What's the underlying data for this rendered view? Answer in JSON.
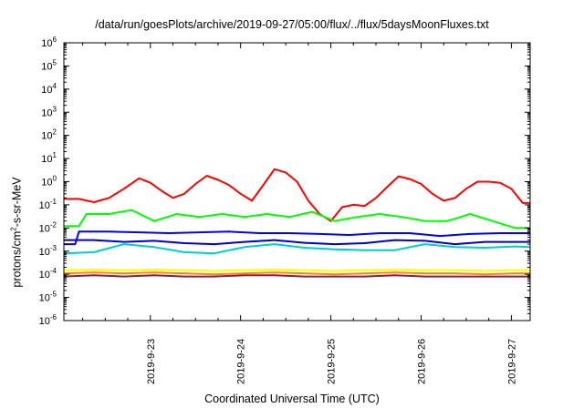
{
  "chart_data": {
    "type": "line",
    "title": "/data/run/goesPlots/archive/2019-09-27/05:00/flux/../flux/5daysMoonFluxes.txt",
    "xlabel": "Coordinated Universal Time (UTC)",
    "ylabel": {
      "base": "protons/cm",
      "sup": "2",
      "rest": "-s-sr-MeV"
    },
    "yscale": "log",
    "ylim": [
      1e-06,
      1000000.0
    ],
    "yticks": [
      {
        "base": "10",
        "exp": "6"
      },
      {
        "base": "10",
        "exp": "5"
      },
      {
        "base": "10",
        "exp": "4"
      },
      {
        "base": "10",
        "exp": "3"
      },
      {
        "base": "10",
        "exp": "2"
      },
      {
        "base": "10",
        "exp": "1"
      },
      {
        "base": "10",
        "exp": "0"
      },
      {
        "base": "10",
        "exp": "-1"
      },
      {
        "base": "10",
        "exp": "-2"
      },
      {
        "base": "10",
        "exp": "-3"
      },
      {
        "base": "10",
        "exp": "-4"
      },
      {
        "base": "10",
        "exp": "-5"
      },
      {
        "base": "10",
        "exp": "-6"
      }
    ],
    "xlim": [
      "2019-09-22T01:00",
      "2019-09-27T05:00"
    ],
    "xticks": [
      "2019-9-23",
      "2019-9-24",
      "2019-9-25",
      "2019-9-26",
      "2019-9-27"
    ],
    "grid": false,
    "legend": "none",
    "series": [
      {
        "color": "#ff0000",
        "x": [
          "2019-09-22T01:00",
          "2019-09-22T05:00",
          "2019-09-22T09:00",
          "2019-09-22T13:00",
          "2019-09-22T17:00",
          "2019-09-22T21:00",
          "2019-09-23T00:00",
          "2019-09-23T03:00",
          "2019-09-23T06:00",
          "2019-09-23T09:00",
          "2019-09-23T12:00",
          "2019-09-23T15:00",
          "2019-09-23T18:00",
          "2019-09-23T21:00",
          "2019-09-24T00:00",
          "2019-09-24T03:00",
          "2019-09-24T06:00",
          "2019-09-24T09:00",
          "2019-09-24T12:00",
          "2019-09-24T15:00",
          "2019-09-24T18:00",
          "2019-09-24T21:00",
          "2019-09-25T00:00",
          "2019-09-25T03:00",
          "2019-09-25T06:00",
          "2019-09-25T09:00",
          "2019-09-25T12:00",
          "2019-09-25T15:00",
          "2019-09-25T18:00",
          "2019-09-25T21:00",
          "2019-09-26T00:00",
          "2019-09-26T03:00",
          "2019-09-26T06:00",
          "2019-09-26T09:00",
          "2019-09-26T12:00",
          "2019-09-26T15:00",
          "2019-09-26T18:00",
          "2019-09-26T21:00",
          "2019-09-27T00:00",
          "2019-09-27T03:00",
          "2019-09-27T05:00"
        ],
        "y": [
          0.18,
          0.18,
          0.13,
          0.2,
          0.5,
          1.4,
          0.9,
          0.4,
          0.2,
          0.3,
          0.8,
          1.8,
          1.2,
          0.7,
          0.3,
          0.15,
          0.7,
          3.5,
          2.5,
          1.0,
          0.15,
          0.04,
          0.02,
          0.08,
          0.1,
          0.09,
          0.2,
          0.6,
          1.7,
          1.3,
          0.8,
          0.3,
          0.15,
          0.2,
          0.5,
          1.0,
          1.0,
          0.9,
          0.5,
          0.12,
          0.12
        ]
      },
      {
        "color": "#00ff00",
        "x": [
          "2019-09-22T01:00",
          "2019-09-22T05:00",
          "2019-09-22T07:00",
          "2019-09-22T13:00",
          "2019-09-22T19:00",
          "2019-09-23T01:00",
          "2019-09-23T07:00",
          "2019-09-23T13:00",
          "2019-09-23T19:00",
          "2019-09-24T01:00",
          "2019-09-24T07:00",
          "2019-09-24T13:00",
          "2019-09-24T19:00",
          "2019-09-25T01:00",
          "2019-09-25T07:00",
          "2019-09-25T13:00",
          "2019-09-25T19:00",
          "2019-09-26T01:00",
          "2019-09-26T07:00",
          "2019-09-26T13:00",
          "2019-09-26T19:00",
          "2019-09-27T01:00",
          "2019-09-27T05:00"
        ],
        "y": [
          0.012,
          0.012,
          0.04,
          0.04,
          0.06,
          0.02,
          0.04,
          0.03,
          0.04,
          0.03,
          0.04,
          0.03,
          0.05,
          0.02,
          0.03,
          0.04,
          0.03,
          0.02,
          0.02,
          0.04,
          0.02,
          0.01,
          0.01
        ]
      },
      {
        "color": "#00cccc",
        "x": [
          "2019-09-22T01:00",
          "2019-09-22T09:00",
          "2019-09-22T17:00",
          "2019-09-23T01:00",
          "2019-09-23T09:00",
          "2019-09-23T17:00",
          "2019-09-24T01:00",
          "2019-09-24T09:00",
          "2019-09-24T17:00",
          "2019-09-25T01:00",
          "2019-09-25T09:00",
          "2019-09-25T17:00",
          "2019-09-26T01:00",
          "2019-09-26T09:00",
          "2019-09-26T17:00",
          "2019-09-27T01:00",
          "2019-09-27T05:00"
        ],
        "y": [
          0.0008,
          0.0009,
          0.002,
          0.0015,
          0.0009,
          0.0008,
          0.0015,
          0.002,
          0.0014,
          0.0012,
          0.0011,
          0.0011,
          0.002,
          0.0015,
          0.0014,
          0.0016,
          0.0015
        ]
      },
      {
        "color": "#0000ff",
        "x": [
          "2019-09-22T01:00",
          "2019-09-22T04:00",
          "2019-09-22T05:00",
          "2019-09-22T13:00",
          "2019-09-22T21:00",
          "2019-09-23T05:00",
          "2019-09-23T13:00",
          "2019-09-23T21:00",
          "2019-09-24T05:00",
          "2019-09-24T13:00",
          "2019-09-24T21:00",
          "2019-09-25T05:00",
          "2019-09-25T13:00",
          "2019-09-25T21:00",
          "2019-09-26T05:00",
          "2019-09-26T13:00",
          "2019-09-26T21:00",
          "2019-09-27T05:00"
        ],
        "y": [
          0.002,
          0.002,
          0.007,
          0.007,
          0.0065,
          0.006,
          0.0065,
          0.007,
          0.006,
          0.006,
          0.0055,
          0.005,
          0.006,
          0.006,
          0.0045,
          0.0055,
          0.006,
          0.006
        ]
      },
      {
        "color": "#0000cc",
        "x": [
          "2019-09-22T01:00",
          "2019-09-22T09:00",
          "2019-09-22T17:00",
          "2019-09-23T01:00",
          "2019-09-23T09:00",
          "2019-09-23T17:00",
          "2019-09-24T01:00",
          "2019-09-24T09:00",
          "2019-09-24T17:00",
          "2019-09-25T01:00",
          "2019-09-25T09:00",
          "2019-09-25T17:00",
          "2019-09-26T01:00",
          "2019-09-26T09:00",
          "2019-09-26T17:00",
          "2019-09-27T01:00",
          "2019-09-27T05:00"
        ],
        "y": [
          0.003,
          0.003,
          0.0025,
          0.0028,
          0.0022,
          0.002,
          0.0025,
          0.003,
          0.0023,
          0.002,
          0.0022,
          0.003,
          0.0028,
          0.002,
          0.0025,
          0.0025,
          0.0025
        ]
      },
      {
        "color": "#ffff00",
        "x": [
          "2019-09-22T01:00",
          "2019-09-22T09:00",
          "2019-09-22T17:00",
          "2019-09-23T01:00",
          "2019-09-23T09:00",
          "2019-09-23T17:00",
          "2019-09-24T01:00",
          "2019-09-24T09:00",
          "2019-09-24T17:00",
          "2019-09-25T01:00",
          "2019-09-25T09:00",
          "2019-09-25T17:00",
          "2019-09-26T01:00",
          "2019-09-26T09:00",
          "2019-09-26T17:00",
          "2019-09-27T01:00",
          "2019-09-27T05:00"
        ],
        "y": [
          0.00015,
          0.00016,
          0.00015,
          0.00016,
          0.00015,
          0.00014,
          0.00015,
          0.00016,
          0.00015,
          0.00014,
          0.00015,
          0.00016,
          0.00015,
          0.00015,
          0.00014,
          0.00015,
          0.00015
        ]
      },
      {
        "color": "#ff8800",
        "x": [
          "2019-09-22T01:00",
          "2019-09-22T09:00",
          "2019-09-22T17:00",
          "2019-09-23T01:00",
          "2019-09-23T09:00",
          "2019-09-23T17:00",
          "2019-09-24T01:00",
          "2019-09-24T09:00",
          "2019-09-24T17:00",
          "2019-09-25T01:00",
          "2019-09-25T09:00",
          "2019-09-25T17:00",
          "2019-09-26T01:00",
          "2019-09-26T09:00",
          "2019-09-26T17:00",
          "2019-09-27T01:00",
          "2019-09-27T05:00"
        ],
        "y": [
          0.00011,
          0.00012,
          0.00011,
          0.00012,
          0.00011,
          0.0001,
          0.00011,
          0.00012,
          0.00011,
          0.0001,
          0.00011,
          0.00012,
          0.00011,
          0.00011,
          0.0001,
          0.00011,
          0.00011
        ]
      },
      {
        "color": "#8b1a4a",
        "x": [
          "2019-09-22T01:00",
          "2019-09-22T09:00",
          "2019-09-22T17:00",
          "2019-09-23T01:00",
          "2019-09-23T09:00",
          "2019-09-23T17:00",
          "2019-09-24T01:00",
          "2019-09-24T09:00",
          "2019-09-24T17:00",
          "2019-09-25T01:00",
          "2019-09-25T09:00",
          "2019-09-25T17:00",
          "2019-09-26T01:00",
          "2019-09-26T09:00",
          "2019-09-26T17:00",
          "2019-09-27T01:00",
          "2019-09-27T05:00"
        ],
        "y": [
          8e-05,
          9e-05,
          8e-05,
          9e-05,
          8e-05,
          8e-05,
          9e-05,
          9e-05,
          8e-05,
          8e-05,
          8e-05,
          9e-05,
          8e-05,
          8e-05,
          8e-05,
          8e-05,
          8e-05
        ]
      }
    ]
  }
}
